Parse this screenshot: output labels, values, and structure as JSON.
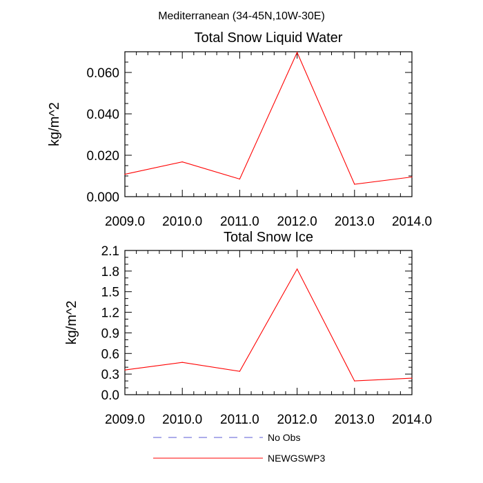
{
  "suptitle": "Mediterranean (34-45N,10W-30E)",
  "legend": {
    "items": [
      {
        "label": "No Obs",
        "color": "#5b5bd6",
        "style": "dashed"
      },
      {
        "label": "NEWGSWP3",
        "color": "#ff0000",
        "style": "solid"
      }
    ]
  },
  "chart_data": [
    {
      "type": "line",
      "title": "Total Snow Liquid Water",
      "xlabel": "",
      "ylabel": "kg/m^2",
      "xlim": [
        2009,
        2014
      ],
      "ylim": [
        0,
        0.07
      ],
      "x_ticks": [
        2009,
        2010,
        2011,
        2012,
        2013,
        2014
      ],
      "x_tick_labels": [
        "2009.0",
        "2010.0",
        "2011.0",
        "2012.0",
        "2013.0",
        "2014.0"
      ],
      "y_ticks": [
        0,
        0.02,
        0.04,
        0.06
      ],
      "y_tick_labels": [
        "0.000",
        "0.020",
        "0.040",
        "0.060"
      ],
      "series": [
        {
          "name": "NEWGSWP3",
          "color": "#ff0000",
          "x": [
            2009,
            2010,
            2011,
            2012,
            2013,
            2014
          ],
          "values": [
            0.0108,
            0.0168,
            0.0085,
            0.0697,
            0.006,
            0.0095
          ]
        }
      ]
    },
    {
      "type": "line",
      "title": "Total Snow Ice",
      "xlabel": "",
      "ylabel": "kg/m^2",
      "xlim": [
        2009,
        2014
      ],
      "ylim": [
        0,
        2.1
      ],
      "x_ticks": [
        2009,
        2010,
        2011,
        2012,
        2013,
        2014
      ],
      "x_tick_labels": [
        "2009.0",
        "2010.0",
        "2011.0",
        "2012.0",
        "2013.0",
        "2014.0"
      ],
      "y_ticks": [
        0,
        0.3,
        0.6,
        0.9,
        1.2,
        1.5,
        1.8,
        2.1
      ],
      "y_tick_labels": [
        "0.0",
        "0.3",
        "0.6",
        "0.9",
        "1.2",
        "1.5",
        "1.8",
        "2.1"
      ],
      "series": [
        {
          "name": "NEWGSWP3",
          "color": "#ff0000",
          "x": [
            2009,
            2010,
            2011,
            2012,
            2013,
            2014
          ],
          "values": [
            0.36,
            0.47,
            0.34,
            1.83,
            0.2,
            0.24
          ]
        }
      ]
    }
  ]
}
